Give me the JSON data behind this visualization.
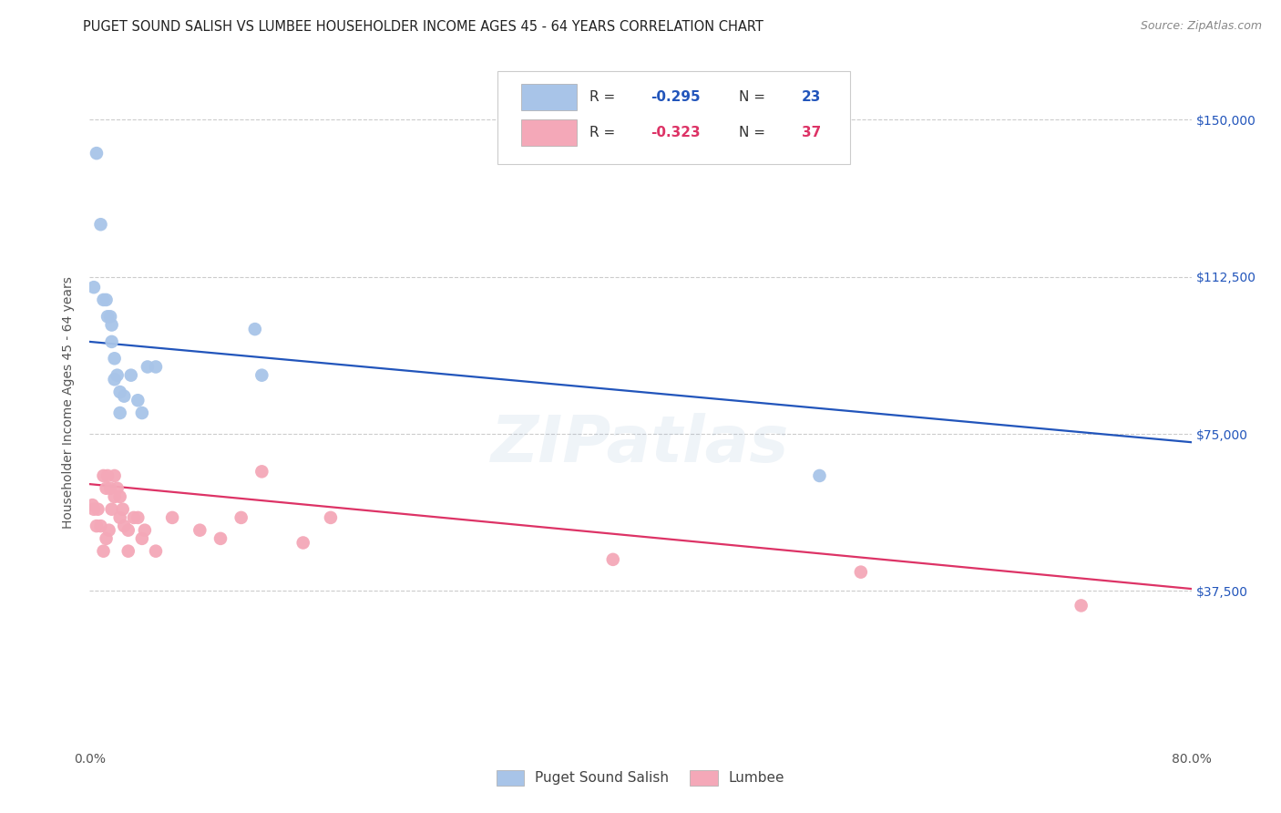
{
  "title": "PUGET SOUND SALISH VS LUMBEE HOUSEHOLDER INCOME AGES 45 - 64 YEARS CORRELATION CHART",
  "source": "Source: ZipAtlas.com",
  "ylabel": "Householder Income Ages 45 - 64 years",
  "xlim": [
    0.0,
    0.8
  ],
  "ylim": [
    0,
    165000
  ],
  "yticks": [
    37500,
    75000,
    112500,
    150000
  ],
  "ytick_labels": [
    "$37,500",
    "$75,000",
    "$112,500",
    "$150,000"
  ],
  "background_color": "#ffffff",
  "watermark": "ZIPatlas",
  "blue_R": "-0.295",
  "blue_N": "23",
  "pink_R": "-0.323",
  "pink_N": "37",
  "blue_color": "#a8c4e8",
  "pink_color": "#f4a8b8",
  "blue_line_color": "#2255bb",
  "pink_line_color": "#dd3366",
  "blue_legend_label": "Puget Sound Salish",
  "pink_legend_label": "Lumbee",
  "blue_x": [
    0.003,
    0.005,
    0.008,
    0.01,
    0.012,
    0.013,
    0.015,
    0.016,
    0.016,
    0.018,
    0.018,
    0.02,
    0.022,
    0.022,
    0.025,
    0.03,
    0.035,
    0.038,
    0.042,
    0.048,
    0.12,
    0.125,
    0.53
  ],
  "blue_y": [
    110000,
    142000,
    125000,
    107000,
    107000,
    103000,
    103000,
    101000,
    97000,
    93000,
    88000,
    89000,
    85000,
    80000,
    84000,
    89000,
    83000,
    80000,
    91000,
    91000,
    100000,
    89000,
    65000
  ],
  "pink_x": [
    0.002,
    0.003,
    0.005,
    0.006,
    0.008,
    0.01,
    0.01,
    0.012,
    0.012,
    0.013,
    0.014,
    0.015,
    0.016,
    0.018,
    0.018,
    0.02,
    0.022,
    0.022,
    0.024,
    0.025,
    0.028,
    0.028,
    0.032,
    0.035,
    0.038,
    0.04,
    0.048,
    0.06,
    0.08,
    0.095,
    0.11,
    0.125,
    0.155,
    0.175,
    0.38,
    0.56,
    0.72
  ],
  "pink_y": [
    58000,
    57000,
    53000,
    57000,
    53000,
    65000,
    47000,
    50000,
    62000,
    65000,
    52000,
    62000,
    57000,
    65000,
    60000,
    62000,
    60000,
    55000,
    57000,
    53000,
    52000,
    47000,
    55000,
    55000,
    50000,
    52000,
    47000,
    55000,
    52000,
    50000,
    55000,
    66000,
    49000,
    55000,
    45000,
    42000,
    34000
  ],
  "blue_trendline_x": [
    0.0,
    0.8
  ],
  "blue_trendline_y": [
    97000,
    73000
  ],
  "pink_trendline_x": [
    0.0,
    0.8
  ],
  "pink_trendline_y": [
    63000,
    38000
  ],
  "title_fontsize": 10.5,
  "source_fontsize": 9,
  "tick_fontsize": 10,
  "ylabel_fontsize": 10,
  "watermark_fontsize": 52,
  "watermark_alpha": 0.13
}
